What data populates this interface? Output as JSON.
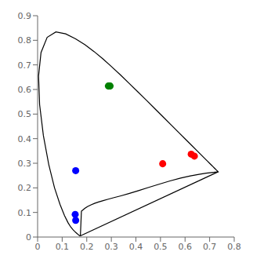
{
  "chart_data": {
    "type": "scatter",
    "xlim": [
      0,
      0.8
    ],
    "ylim": [
      0,
      0.9
    ],
    "xticks": [
      0,
      0.1,
      0.2,
      0.3,
      0.4,
      0.5,
      0.6,
      0.7,
      0.8
    ],
    "yticks": [
      0,
      0.1,
      0.2,
      0.3,
      0.4,
      0.5,
      0.6,
      0.7,
      0.8,
      0.9
    ],
    "grid": false,
    "series": [
      {
        "type": "line",
        "color": "#000000",
        "x": [
          0.1741,
          0.174,
          0.1738,
          0.1736,
          0.1733,
          0.173,
          0.1726,
          0.1721,
          0.1714,
          0.1703,
          0.1689,
          0.1669,
          0.1644,
          0.1611,
          0.1566,
          0.151,
          0.144,
          0.1355,
          0.1241,
          0.1096,
          0.0913,
          0.0687,
          0.0454,
          0.0235,
          0.0082,
          0.0039,
          0.0139,
          0.0389,
          0.0743,
          0.1142,
          0.1547,
          0.1929,
          0.2296,
          0.2658,
          0.3016,
          0.3373,
          0.3731,
          0.4087,
          0.4441,
          0.4788,
          0.5125,
          0.5448,
          0.5752,
          0.6029,
          0.627,
          0.6482,
          0.6658,
          0.6801,
          0.6915,
          0.7006,
          0.7079,
          0.714,
          0.719,
          0.723,
          0.726,
          0.7283,
          0.73,
          0.7311,
          0.732,
          0.7327,
          0.7334,
          0.734,
          0.7344,
          0.7346,
          0.7347,
          0.7347,
          0.7347,
          0.7347,
          0.7347,
          0.7347,
          0.7347,
          0.7347,
          0.7336,
          0.73,
          0.7218,
          0.7076,
          0.6858,
          0.6567,
          0.6216,
          0.5821,
          0.5388,
          0.4938,
          0.4495,
          0.4082,
          0.3713,
          0.3391,
          0.3112,
          0.2876,
          0.2668,
          0.2476,
          0.2313,
          0.2175,
          0.2027,
          0.193,
          0.1852,
          0.1783,
          0.1741
        ],
        "values": [
          0.005,
          0.005,
          0.0049,
          0.0049,
          0.0048,
          0.0048,
          0.0048,
          0.0048,
          0.0051,
          0.0058,
          0.0069,
          0.0086,
          0.0109,
          0.0138,
          0.0177,
          0.0227,
          0.0297,
          0.0399,
          0.0578,
          0.0868,
          0.1327,
          0.2007,
          0.295,
          0.4127,
          0.5384,
          0.6548,
          0.7502,
          0.812,
          0.8338,
          0.8262,
          0.8059,
          0.7816,
          0.7543,
          0.7243,
          0.6923,
          0.6589,
          0.6245,
          0.5896,
          0.5547,
          0.5202,
          0.4866,
          0.4544,
          0.4242,
          0.3965,
          0.3725,
          0.3514,
          0.334,
          0.3197,
          0.3083,
          0.2993,
          0.292,
          0.2859,
          0.2809,
          0.277,
          0.274,
          0.2717,
          0.27,
          0.2689,
          0.268,
          0.2673,
          0.2666,
          0.266,
          0.2656,
          0.2654,
          0.2653,
          0.2653,
          0.2653,
          0.2653,
          0.2653,
          0.2653,
          0.2653,
          0.2653,
          0.2651,
          0.2648,
          0.264,
          0.2624,
          0.2595,
          0.255,
          0.2486,
          0.2397,
          0.2281,
          0.2147,
          0.2009,
          0.1877,
          0.1768,
          0.1677,
          0.1604,
          0.1541,
          0.1482,
          0.1425,
          0.1368,
          0.131,
          0.1237,
          0.117,
          0.1107,
          0.105,
          0.005
        ]
      },
      {
        "type": "line",
        "color": "#000000",
        "x": [
          0.1741,
          0.7347
        ],
        "values": [
          0.005,
          0.2653
        ]
      },
      {
        "type": "scatter",
        "color": "red",
        "x": [
          0.509,
          0.625,
          0.638
        ],
        "values": [
          0.298,
          0.337,
          0.329
        ]
      },
      {
        "type": "scatter",
        "color": "green",
        "x": [
          0.288,
          0.295
        ],
        "values": [
          0.614,
          0.614
        ]
      },
      {
        "type": "scatter",
        "color": "blue",
        "x": [
          0.155,
          0.155,
          0.153
        ],
        "values": [
          0.27,
          0.068,
          0.092
        ]
      }
    ]
  }
}
